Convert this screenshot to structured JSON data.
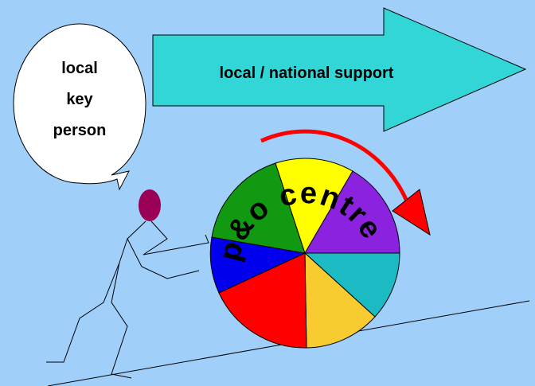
{
  "bubble": {
    "lines": [
      "local",
      "key",
      "person"
    ]
  },
  "arrow": {
    "label": "local / national support"
  },
  "wheel": {
    "label": "p&o centre"
  }
}
